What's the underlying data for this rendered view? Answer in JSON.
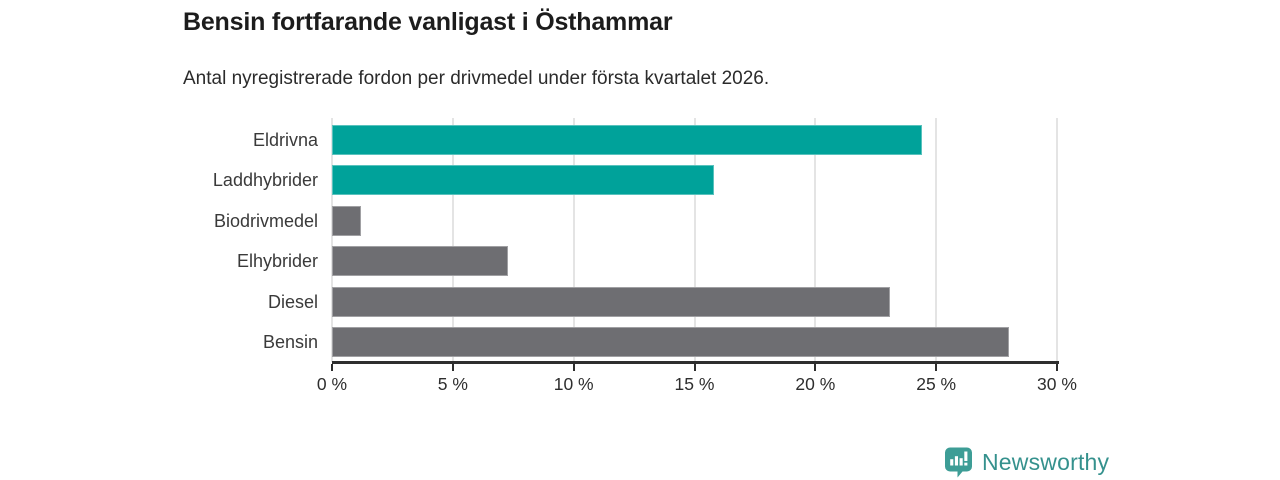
{
  "chart": {
    "title": "Bensin fortfarande vanligast i Östhammar",
    "subtitle": "Antal nyregistrerade fordon per drivmedel under första kvartalet 2026."
  },
  "chart_data": {
    "type": "bar",
    "orientation": "horizontal",
    "title": "Bensin fortfarande vanligast i Östhammar",
    "subtitle": "Antal nyregistrerade fordon per drivmedel under första kvartalet 2026.",
    "categories": [
      "Eldrivna",
      "Laddhybrider",
      "Biodrivmedel",
      "Elhybrider",
      "Diesel",
      "Bensin"
    ],
    "values": [
      24.4,
      15.8,
      1.2,
      7.3,
      23.1,
      28.0
    ],
    "unit": "%",
    "bar_colors": [
      "#00a29a",
      "#00a29a",
      "#6e6e72",
      "#6e6e72",
      "#6e6e72",
      "#6e6e72"
    ],
    "xlabel": "",
    "ylabel": "",
    "xlim": [
      0,
      30
    ],
    "x_ticks": [
      0,
      5,
      10,
      15,
      20,
      25,
      30
    ],
    "x_tick_labels": [
      "0 %",
      "5 %",
      "10 %",
      "15 %",
      "20 %",
      "25 %",
      "30 %"
    ],
    "grid": "vertical",
    "legend": "none"
  },
  "colors": {
    "accent_teal": "#00a29a",
    "bar_gray": "#6e6e72",
    "logo_icon_teal": "#3d9d96",
    "logo_text_teal": "#35918d",
    "axis": "#2e2e2e",
    "gridline": "#e4e4e4"
  },
  "footer": {
    "brand": "Newsworthy"
  }
}
